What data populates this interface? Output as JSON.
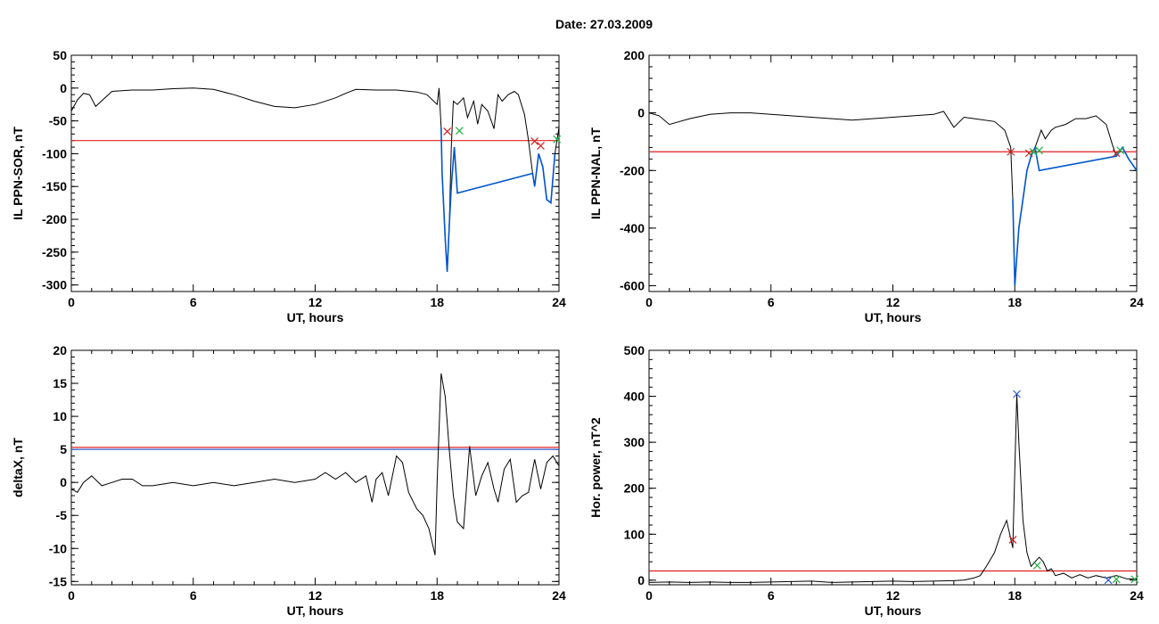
{
  "title": "Date:  27.03.2009",
  "chart_data": [
    {
      "type": "line",
      "ylabel": "IL PPN-SOR, nT",
      "xlabel": "UT, hours",
      "xlim": [
        0,
        24
      ],
      "ylim": [
        -310,
        50
      ],
      "xticks": [
        0,
        6,
        12,
        18,
        24
      ],
      "yticks": [
        50,
        0,
        -50,
        -100,
        -150,
        -200,
        -250,
        -300
      ],
      "threshold": -80,
      "series": [
        {
          "color": "#000000",
          "x": [
            0,
            0.3,
            0.6,
            0.9,
            1.2,
            2,
            3,
            4,
            5,
            6,
            7,
            8,
            9,
            10,
            11,
            12,
            13,
            13.5,
            14,
            15,
            16,
            17,
            17.5,
            18,
            18.1,
            18.2,
            18.25,
            18.4,
            18.5,
            18.6,
            18.7,
            18.8,
            19,
            19.3,
            19.5,
            19.8,
            20,
            20.2,
            20.5,
            20.8,
            21,
            21.2,
            21.5,
            21.8,
            22,
            22.3,
            22.5,
            22.7,
            22.8,
            23,
            23.2,
            23.4,
            23.6,
            23.8,
            24
          ],
          "y": [
            -35,
            -18,
            -8,
            -10,
            -28,
            -5,
            -3,
            -3,
            -1,
            0,
            -2,
            -10,
            -20,
            -28,
            -30,
            -25,
            -15,
            -8,
            -2,
            -3,
            -3,
            -6,
            -10,
            -25,
            0,
            -60,
            -130,
            -230,
            -280,
            -210,
            -90,
            -20,
            -25,
            -15,
            -45,
            -20,
            -55,
            -25,
            -35,
            -62,
            -10,
            -20,
            -10,
            -5,
            -10,
            -40,
            -80,
            -130,
            -150,
            -100,
            -120,
            -170,
            -175,
            -100,
            -60
          ]
        },
        {
          "color": "#0055cc",
          "x": [
            18.2,
            18.25,
            18.4,
            18.5,
            18.6,
            18.7,
            18.85,
            19,
            22.7,
            22.8,
            23,
            23.2,
            23.4,
            23.6,
            23.8
          ],
          "y": [
            -60,
            -130,
            -230,
            -280,
            -210,
            -150,
            -90,
            -160,
            -130,
            -150,
            -100,
            -120,
            -170,
            -175,
            -100
          ]
        }
      ],
      "markers": [
        {
          "x": 18.5,
          "y": -66,
          "color": "#d02020"
        },
        {
          "x": 19.1,
          "y": -65,
          "color": "#20b040"
        },
        {
          "x": 22.8,
          "y": -81,
          "color": "#d02020"
        },
        {
          "x": 23.1,
          "y": -88,
          "color": "#d02020"
        },
        {
          "x": 23.9,
          "y": -78,
          "color": "#20b040"
        }
      ]
    },
    {
      "type": "line",
      "ylabel": "IL PPN-NAL, nT",
      "xlabel": "UT, hours",
      "xlim": [
        0,
        24
      ],
      "ylim": [
        -620,
        200
      ],
      "xticks": [
        0,
        6,
        12,
        18,
        24
      ],
      "yticks": [
        200,
        0,
        -200,
        -400,
        -600
      ],
      "threshold": -135,
      "series": [
        {
          "color": "#000000",
          "x": [
            0,
            0.5,
            1,
            2,
            3,
            4,
            5,
            6,
            7,
            8,
            9,
            10,
            11,
            12,
            13,
            14,
            14.5,
            15,
            15.5,
            16,
            17,
            17.5,
            17.8,
            17.9,
            18,
            18.1,
            18.2,
            18.4,
            18.6,
            18.8,
            19,
            19.3,
            19.5,
            19.8,
            20,
            20.5,
            21,
            21.5,
            22,
            22.5,
            22.8,
            23,
            23.3,
            23.6,
            24
          ],
          "y": [
            0,
            -10,
            -40,
            -20,
            -5,
            0,
            0,
            -5,
            -10,
            -15,
            -20,
            -25,
            -20,
            -15,
            -10,
            -5,
            5,
            -50,
            -15,
            -20,
            -30,
            -60,
            -120,
            -300,
            -600,
            -500,
            -400,
            -300,
            -200,
            -150,
            -120,
            -60,
            -90,
            -60,
            -50,
            -40,
            -20,
            -20,
            -10,
            -40,
            -110,
            -150,
            -120,
            -160,
            -200
          ]
        },
        {
          "color": "#0055cc",
          "x": [
            17.9,
            18,
            18.1,
            18.2,
            18.4,
            18.6,
            18.8,
            19,
            19.2,
            23,
            23.3,
            23.6,
            24
          ],
          "y": [
            -300,
            -600,
            -500,
            -400,
            -300,
            -200,
            -150,
            -120,
            -200,
            -150,
            -120,
            -160,
            -200
          ]
        }
      ],
      "markers": [
        {
          "x": 17.8,
          "y": -135,
          "color": "#d02020"
        },
        {
          "x": 18.7,
          "y": -140,
          "color": "#d02020"
        },
        {
          "x": 18.9,
          "y": -135,
          "color": "#20b040"
        },
        {
          "x": 19.2,
          "y": -130,
          "color": "#20b040"
        },
        {
          "x": 23.0,
          "y": -140,
          "color": "#d02020"
        },
        {
          "x": 23.2,
          "y": -130,
          "color": "#20b040"
        }
      ]
    },
    {
      "type": "line",
      "ylabel": "deltaX, nT",
      "xlabel": "UT, hours",
      "xlim": [
        0,
        24
      ],
      "ylim": [
        -15.5,
        20
      ],
      "xticks": [
        0,
        6,
        12,
        18,
        24
      ],
      "yticks": [
        20,
        15,
        10,
        5,
        0,
        -5,
        -10,
        -15
      ],
      "threshold": 5.3,
      "threshold2": 5.0,
      "series": [
        {
          "color": "#000000",
          "x": [
            0,
            0.3,
            0.6,
            1,
            1.5,
            2,
            2.5,
            3,
            3.5,
            4,
            5,
            6,
            7,
            8,
            9,
            10,
            11,
            12,
            12.5,
            13,
            13.5,
            14,
            14.5,
            14.8,
            15,
            15.3,
            15.6,
            16,
            16.3,
            16.6,
            17,
            17.3,
            17.6,
            17.9,
            18,
            18.2,
            18.4,
            18.6,
            18.8,
            19,
            19.3,
            19.6,
            19.9,
            20.2,
            20.5,
            20.8,
            21,
            21.3,
            21.6,
            21.9,
            22.2,
            22.5,
            22.8,
            23.1,
            23.4,
            23.7,
            24
          ],
          "y": [
            -1,
            -1.5,
            0,
            1,
            -0.5,
            0,
            0.5,
            0.5,
            -0.5,
            -0.5,
            0,
            -0.5,
            0,
            -0.5,
            0,
            0.5,
            0,
            0.5,
            1.5,
            0.5,
            1.5,
            0,
            1,
            -3,
            0.5,
            1.5,
            -2,
            4,
            3,
            -1.5,
            -4,
            -5,
            -7,
            -11,
            0,
            16.5,
            13,
            5,
            -2,
            -6,
            -7,
            5.5,
            -2,
            1,
            3,
            -1,
            -3,
            2,
            3.5,
            -3,
            -2,
            -1.5,
            3.5,
            -1,
            3,
            4,
            2.5
          ]
        }
      ],
      "markers": []
    },
    {
      "type": "line",
      "ylabel": "Hor. power, nT^2",
      "xlabel": "UT, hours",
      "xlim": [
        0,
        24
      ],
      "ylim": [
        -10,
        500
      ],
      "xticks": [
        0,
        6,
        12,
        18,
        24
      ],
      "yticks": [
        500,
        400,
        300,
        200,
        100,
        0
      ],
      "threshold": 20,
      "series": [
        {
          "color": "#000000",
          "x": [
            0,
            1,
            2,
            3,
            4,
            5,
            6,
            7,
            8,
            9,
            10,
            11,
            12,
            13,
            14,
            15,
            15.5,
            16,
            16.3,
            16.6,
            17,
            17.3,
            17.6,
            17.8,
            17.9,
            18.1,
            18.2,
            18.4,
            18.6,
            18.8,
            19,
            19.2,
            19.4,
            19.6,
            19.8,
            20,
            20.4,
            20.8,
            21.2,
            21.6,
            22,
            22.5,
            23,
            23.5,
            24
          ],
          "y": [
            -5,
            -4,
            -5,
            -4,
            -5,
            -5,
            -4,
            -3,
            -2,
            -5,
            -4,
            -3,
            -2,
            -3,
            -2,
            -1,
            0,
            5,
            10,
            30,
            60,
            100,
            130,
            90,
            70,
            405,
            300,
            130,
            60,
            30,
            40,
            50,
            40,
            20,
            25,
            10,
            15,
            5,
            12,
            5,
            10,
            5,
            10,
            3,
            2
          ]
        }
      ],
      "markers": [
        {
          "x": 17.9,
          "y": 88,
          "color": "#d02020"
        },
        {
          "x": 18.1,
          "y": 405,
          "color": "#3060d0"
        },
        {
          "x": 19.1,
          "y": 32,
          "color": "#20b040"
        },
        {
          "x": 22.6,
          "y": 0,
          "color": "#3060d0"
        },
        {
          "x": 23.0,
          "y": 2,
          "color": "#20b040"
        },
        {
          "x": 23.9,
          "y": 2,
          "color": "#20b040"
        }
      ]
    }
  ]
}
